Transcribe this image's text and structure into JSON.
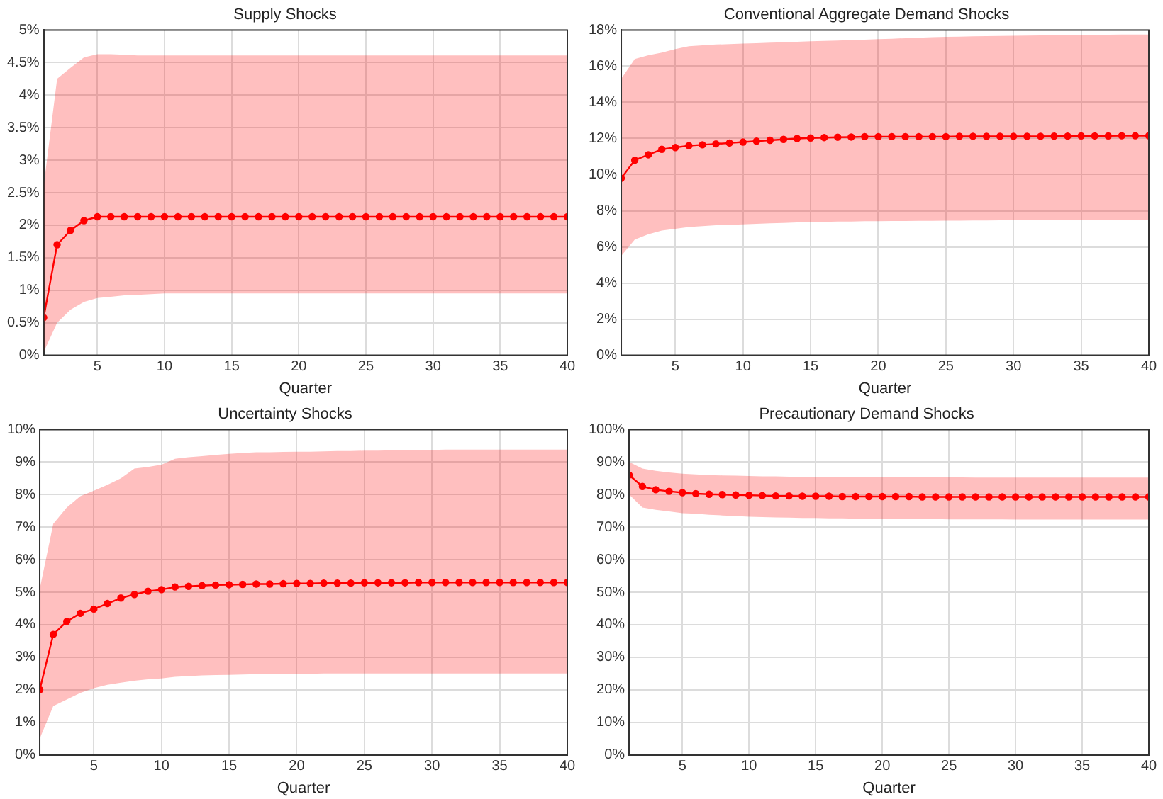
{
  "chart_data": [
    {
      "type": "line",
      "title": "Supply Shocks",
      "xlabel": "Quarter",
      "x": [
        1,
        2,
        3,
        4,
        5,
        6,
        7,
        8,
        9,
        10,
        11,
        12,
        13,
        14,
        15,
        16,
        17,
        18,
        19,
        20,
        21,
        22,
        23,
        24,
        25,
        26,
        27,
        28,
        29,
        30,
        31,
        32,
        33,
        34,
        35,
        36,
        37,
        38,
        39,
        40
      ],
      "xlim": [
        1,
        40
      ],
      "xticks": [
        5,
        10,
        15,
        20,
        25,
        30,
        35,
        40
      ],
      "ylim": [
        0,
        5
      ],
      "yticks": [
        {
          "value": 0,
          "label": "0%"
        },
        {
          "value": 0.5,
          "label": "0.5%"
        },
        {
          "value": 1,
          "label": "1%"
        },
        {
          "value": 1.5,
          "label": "1.5%"
        },
        {
          "value": 2,
          "label": "2%"
        },
        {
          "value": 2.5,
          "label": "2.5%"
        },
        {
          "value": 3,
          "label": "3%"
        },
        {
          "value": 3.5,
          "label": "3.5%"
        },
        {
          "value": 4,
          "label": "4%"
        },
        {
          "value": 4.5,
          "label": "4.5%"
        },
        {
          "value": 5,
          "label": "5%"
        }
      ],
      "grid": true,
      "marker": "circle",
      "series": [
        {
          "color": "#ff0000",
          "values": [
            0.58,
            1.7,
            1.92,
            2.07,
            2.13,
            2.13,
            2.13,
            2.13,
            2.13,
            2.13,
            2.13,
            2.13,
            2.13,
            2.13,
            2.13,
            2.13,
            2.13,
            2.13,
            2.13,
            2.13,
            2.13,
            2.13,
            2.13,
            2.13,
            2.13,
            2.13,
            2.13,
            2.13,
            2.13,
            2.13,
            2.13,
            2.13,
            2.13,
            2.13,
            2.13,
            2.13,
            2.13,
            2.13,
            2.13,
            2.13
          ],
          "lower": [
            0.05,
            0.5,
            0.7,
            0.82,
            0.88,
            0.9,
            0.92,
            0.93,
            0.94,
            0.95,
            0.95,
            0.95,
            0.95,
            0.95,
            0.95,
            0.95,
            0.95,
            0.95,
            0.95,
            0.95,
            0.95,
            0.95,
            0.95,
            0.95,
            0.95,
            0.95,
            0.95,
            0.95,
            0.95,
            0.95,
            0.95,
            0.95,
            0.95,
            0.95,
            0.95,
            0.95,
            0.95,
            0.95,
            0.95,
            0.95
          ],
          "upper": [
            2.6,
            4.25,
            4.42,
            4.58,
            4.63,
            4.63,
            4.62,
            4.61,
            4.61,
            4.61,
            4.61,
            4.61,
            4.61,
            4.61,
            4.61,
            4.61,
            4.61,
            4.61,
            4.61,
            4.61,
            4.61,
            4.61,
            4.61,
            4.61,
            4.61,
            4.61,
            4.61,
            4.61,
            4.61,
            4.61,
            4.61,
            4.61,
            4.61,
            4.61,
            4.61,
            4.61,
            4.61,
            4.61,
            4.61,
            4.61
          ]
        }
      ]
    },
    {
      "type": "line",
      "title": "Conventional Aggregate Demand Shocks",
      "xlabel": "Quarter",
      "x": [
        1,
        2,
        3,
        4,
        5,
        6,
        7,
        8,
        9,
        10,
        11,
        12,
        13,
        14,
        15,
        16,
        17,
        18,
        19,
        20,
        21,
        22,
        23,
        24,
        25,
        26,
        27,
        28,
        29,
        30,
        31,
        32,
        33,
        34,
        35,
        36,
        37,
        38,
        39,
        40
      ],
      "xlim": [
        1,
        40
      ],
      "xticks": [
        5,
        10,
        15,
        20,
        25,
        30,
        35,
        40
      ],
      "ylim": [
        0,
        18
      ],
      "yticks": [
        {
          "value": 0,
          "label": "0%"
        },
        {
          "value": 2,
          "label": "2%"
        },
        {
          "value": 4,
          "label": "4%"
        },
        {
          "value": 6,
          "label": "6%"
        },
        {
          "value": 8,
          "label": "8%"
        },
        {
          "value": 10,
          "label": "10%"
        },
        {
          "value": 12,
          "label": "12%"
        },
        {
          "value": 14,
          "label": "14%"
        },
        {
          "value": 16,
          "label": "16%"
        },
        {
          "value": 18,
          "label": "18%"
        }
      ],
      "grid": true,
      "marker": "circle",
      "series": [
        {
          "color": "#ff0000",
          "values": [
            9.8,
            10.8,
            11.1,
            11.4,
            11.5,
            11.6,
            11.65,
            11.7,
            11.75,
            11.8,
            11.85,
            11.9,
            11.95,
            12,
            12.03,
            12.05,
            12.07,
            12.08,
            12.1,
            12.1,
            12.1,
            12.1,
            12.1,
            12.1,
            12.1,
            12.12,
            12.12,
            12.12,
            12.12,
            12.12,
            12.12,
            12.12,
            12.13,
            12.13,
            12.14,
            12.14,
            12.14,
            12.15,
            12.15,
            12.15
          ],
          "lower": [
            5.5,
            6.4,
            6.7,
            6.9,
            7,
            7.1,
            7.15,
            7.2,
            7.22,
            7.25,
            7.28,
            7.3,
            7.32,
            7.35,
            7.37,
            7.38,
            7.4,
            7.4,
            7.42,
            7.42,
            7.43,
            7.43,
            7.44,
            7.44,
            7.45,
            7.45,
            7.46,
            7.46,
            7.47,
            7.47,
            7.48,
            7.48,
            7.48,
            7.49,
            7.49,
            7.5,
            7.5,
            7.5,
            7.5,
            7.5
          ],
          "upper": [
            15.3,
            16.4,
            16.6,
            16.75,
            16.95,
            17.1,
            17.15,
            17.2,
            17.22,
            17.25,
            17.27,
            17.3,
            17.32,
            17.35,
            17.38,
            17.4,
            17.42,
            17.45,
            17.47,
            17.5,
            17.52,
            17.55,
            17.57,
            17.6,
            17.62,
            17.63,
            17.65,
            17.66,
            17.67,
            17.68,
            17.69,
            17.7,
            17.7,
            17.71,
            17.72,
            17.73,
            17.74,
            17.75,
            17.75,
            17.75
          ]
        }
      ]
    },
    {
      "type": "line",
      "title": "Uncertainty Shocks",
      "xlabel": "Quarter",
      "x": [
        1,
        2,
        3,
        4,
        5,
        6,
        7,
        8,
        9,
        10,
        11,
        12,
        13,
        14,
        15,
        16,
        17,
        18,
        19,
        20,
        21,
        22,
        23,
        24,
        25,
        26,
        27,
        28,
        29,
        30,
        31,
        32,
        33,
        34,
        35,
        36,
        37,
        38,
        39,
        40
      ],
      "xlim": [
        1,
        40
      ],
      "xticks": [
        5,
        10,
        15,
        20,
        25,
        30,
        35,
        40
      ],
      "ylim": [
        0,
        10
      ],
      "yticks": [
        {
          "value": 0,
          "label": "0%"
        },
        {
          "value": 1,
          "label": "1%"
        },
        {
          "value": 2,
          "label": "2%"
        },
        {
          "value": 3,
          "label": "3%"
        },
        {
          "value": 4,
          "label": "4%"
        },
        {
          "value": 5,
          "label": "5%"
        },
        {
          "value": 6,
          "label": "6%"
        },
        {
          "value": 7,
          "label": "7%"
        },
        {
          "value": 8,
          "label": "8%"
        },
        {
          "value": 9,
          "label": "9%"
        },
        {
          "value": 10,
          "label": "10%"
        }
      ],
      "grid": true,
      "marker": "circle",
      "series": [
        {
          "color": "#ff0000",
          "values": [
            2,
            3.7,
            4.1,
            4.35,
            4.48,
            4.65,
            4.82,
            4.93,
            5.03,
            5.08,
            5.16,
            5.18,
            5.2,
            5.22,
            5.23,
            5.24,
            5.25,
            5.25,
            5.26,
            5.27,
            5.27,
            5.28,
            5.28,
            5.28,
            5.29,
            5.29,
            5.29,
            5.29,
            5.3,
            5.3,
            5.3,
            5.3,
            5.3,
            5.3,
            5.3,
            5.3,
            5.3,
            5.3,
            5.3,
            5.3
          ],
          "lower": [
            0.5,
            1.5,
            1.7,
            1.9,
            2.05,
            2.15,
            2.22,
            2.28,
            2.32,
            2.35,
            2.4,
            2.42,
            2.44,
            2.45,
            2.46,
            2.47,
            2.48,
            2.48,
            2.49,
            2.49,
            2.49,
            2.5,
            2.5,
            2.5,
            2.5,
            2.5,
            2.5,
            2.5,
            2.5,
            2.5,
            2.5,
            2.5,
            2.5,
            2.5,
            2.5,
            2.5,
            2.5,
            2.5,
            2.5,
            2.5
          ],
          "upper": [
            5.1,
            7.1,
            7.6,
            7.95,
            8.12,
            8.3,
            8.5,
            8.8,
            8.85,
            8.92,
            9.1,
            9.15,
            9.18,
            9.22,
            9.25,
            9.28,
            9.3,
            9.3,
            9.31,
            9.32,
            9.32,
            9.33,
            9.34,
            9.34,
            9.35,
            9.35,
            9.36,
            9.36,
            9.37,
            9.37,
            9.38,
            9.38,
            9.38,
            9.38,
            9.38,
            9.38,
            9.38,
            9.38,
            9.38,
            9.38
          ]
        }
      ]
    },
    {
      "type": "line",
      "title": "Precautionary Demand Shocks",
      "xlabel": "Quarter",
      "x": [
        1,
        2,
        3,
        4,
        5,
        6,
        7,
        8,
        9,
        10,
        11,
        12,
        13,
        14,
        15,
        16,
        17,
        18,
        19,
        20,
        21,
        22,
        23,
        24,
        25,
        26,
        27,
        28,
        29,
        30,
        31,
        32,
        33,
        34,
        35,
        36,
        37,
        38,
        39,
        40
      ],
      "xlim": [
        1,
        40
      ],
      "xticks": [
        5,
        10,
        15,
        20,
        25,
        30,
        35,
        40
      ],
      "ylim": [
        0,
        100
      ],
      "yticks": [
        {
          "value": 0,
          "label": "0%"
        },
        {
          "value": 10,
          "label": "10%"
        },
        {
          "value": 20,
          "label": "20%"
        },
        {
          "value": 30,
          "label": "30%"
        },
        {
          "value": 40,
          "label": "40%"
        },
        {
          "value": 50,
          "label": "50%"
        },
        {
          "value": 60,
          "label": "60%"
        },
        {
          "value": 70,
          "label": "70%"
        },
        {
          "value": 80,
          "label": "80%"
        },
        {
          "value": 90,
          "label": "90%"
        },
        {
          "value": 100,
          "label": "100%"
        }
      ],
      "grid": true,
      "marker": "circle",
      "series": [
        {
          "color": "#ff0000",
          "values": [
            86,
            82.5,
            81.5,
            81,
            80.6,
            80.3,
            80.1,
            80,
            79.9,
            79.8,
            79.7,
            79.6,
            79.6,
            79.5,
            79.5,
            79.5,
            79.4,
            79.4,
            79.4,
            79.4,
            79.4,
            79.4,
            79.3,
            79.3,
            79.3,
            79.3,
            79.3,
            79.3,
            79.3,
            79.3,
            79.3,
            79.3,
            79.3,
            79.3,
            79.3,
            79.3,
            79.3,
            79.3,
            79.3,
            79.3
          ],
          "lower": [
            80,
            76,
            75.3,
            74.8,
            74.3,
            74.1,
            73.8,
            73.6,
            73.4,
            73.2,
            73.1,
            73,
            72.9,
            72.8,
            72.8,
            72.7,
            72.7,
            72.6,
            72.6,
            72.6,
            72.5,
            72.5,
            72.5,
            72.5,
            72.4,
            72.4,
            72.4,
            72.4,
            72.4,
            72.3,
            72.3,
            72.3,
            72.3,
            72.3,
            72.3,
            72.3,
            72.3,
            72.3,
            72.3,
            72.3
          ],
          "upper": [
            90,
            88,
            87.3,
            86.8,
            86.4,
            86.2,
            86,
            85.9,
            85.8,
            85.7,
            85.6,
            85.6,
            85.5,
            85.5,
            85.5,
            85.4,
            85.4,
            85.4,
            85.4,
            85.3,
            85.3,
            85.3,
            85.3,
            85.3,
            85.3,
            85.3,
            85.2,
            85.2,
            85.2,
            85.2,
            85.2,
            85.2,
            85.2,
            85.2,
            85.2,
            85.2,
            85.2,
            85.2,
            85.2,
            85.2
          ]
        }
      ]
    }
  ]
}
